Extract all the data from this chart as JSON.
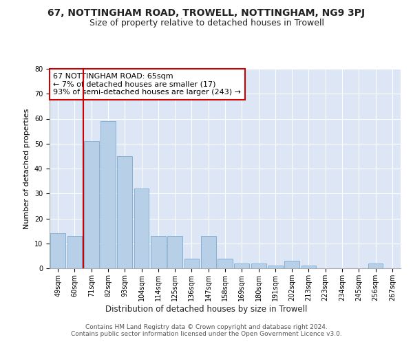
{
  "title1": "67, NOTTINGHAM ROAD, TROWELL, NOTTINGHAM, NG9 3PJ",
  "title2": "Size of property relative to detached houses in Trowell",
  "xlabel": "Distribution of detached houses by size in Trowell",
  "ylabel": "Number of detached properties",
  "categories": [
    "49sqm",
    "60sqm",
    "71sqm",
    "82sqm",
    "93sqm",
    "104sqm",
    "114sqm",
    "125sqm",
    "136sqm",
    "147sqm",
    "158sqm",
    "169sqm",
    "180sqm",
    "191sqm",
    "202sqm",
    "213sqm",
    "223sqm",
    "234sqm",
    "245sqm",
    "256sqm",
    "267sqm"
  ],
  "values": [
    14,
    13,
    51,
    59,
    45,
    32,
    13,
    13,
    4,
    13,
    4,
    2,
    2,
    1,
    3,
    1,
    0,
    0,
    0,
    2,
    0
  ],
  "bar_color": "#b8cfe8",
  "bar_edge_color": "#7aaad0",
  "vline_color": "#cc0000",
  "annotation_text": "67 NOTTINGHAM ROAD: 65sqm\n← 7% of detached houses are smaller (17)\n93% of semi-detached houses are larger (243) →",
  "annotation_box_color": "#ffffff",
  "annotation_box_edge_color": "#cc0000",
  "ylim": [
    0,
    80
  ],
  "yticks": [
    0,
    10,
    20,
    30,
    40,
    50,
    60,
    70,
    80
  ],
  "background_color": "#dce6f5",
  "footer_text": "Contains HM Land Registry data © Crown copyright and database right 2024.\nContains public sector information licensed under the Open Government Licence v3.0.",
  "title1_fontsize": 10,
  "title2_fontsize": 9,
  "xlabel_fontsize": 8.5,
  "ylabel_fontsize": 8,
  "tick_fontsize": 7,
  "annotation_fontsize": 8,
  "footer_fontsize": 6.5
}
